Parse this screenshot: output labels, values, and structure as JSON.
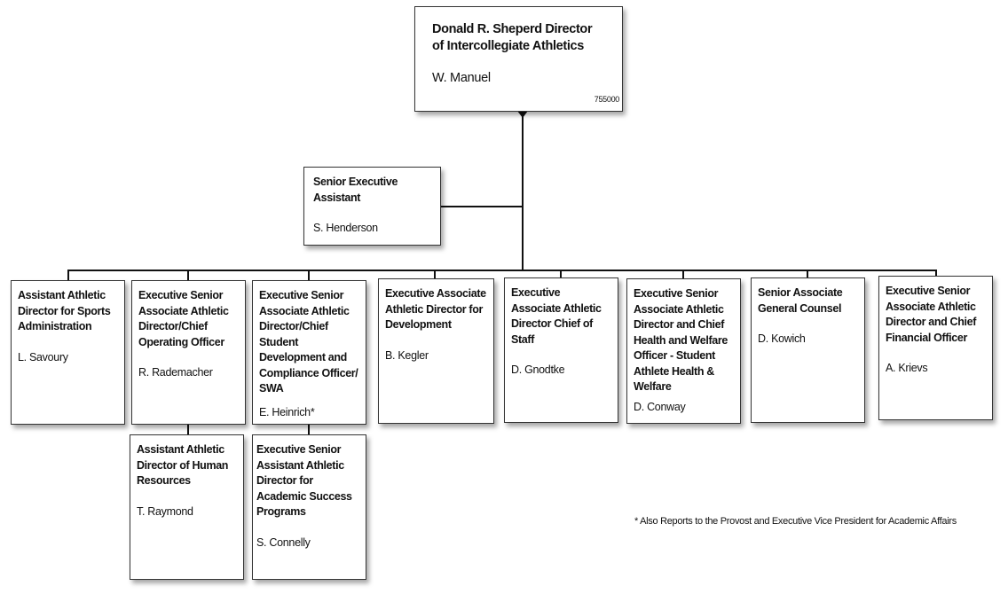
{
  "top": {
    "title": "Donald R. Sheperd Director of Intercollegiate Athletics",
    "name": "W. Manuel",
    "code": "755000"
  },
  "assistant": {
    "title": "Senior Executive Assistant",
    "name": "S. Henderson"
  },
  "reports": [
    {
      "title": "Assistant Athletic Director for Sports Administration",
      "name": "L. Savoury"
    },
    {
      "title": "Executive Senior Associate Athletic Director/Chief Operating Officer",
      "name": "R. Rademacher"
    },
    {
      "title": "Executive Senior Associate Athletic Director/Chief Student Development and Compliance Officer/ SWA",
      "name": "E. Heinrich*"
    },
    {
      "title": "Executive Associate Athletic Director for Development",
      "name": "B. Kegler"
    },
    {
      "title": "Executive Associate Athletic Director Chief of Staff",
      "name": "D. Gnodtke"
    },
    {
      "title": "Executive Senior Associate Athletic Director and Chief Health and Welfare Officer - Student Athlete Health & Welfare",
      "name": "D. Conway"
    },
    {
      "title": "Senior Associate General Counsel",
      "name": "D. Kowich"
    },
    {
      "title": "Executive Senior Associate Athletic Director and Chief Financial Officer",
      "name": "A. Krievs"
    }
  ],
  "sub_reports": [
    {
      "title": "Assistant Athletic Director of Human Resources",
      "name": "T. Raymond"
    },
    {
      "title": "Executive Senior Assistant Athletic Director for Academic Success Programs",
      "name": "S. Connelly"
    }
  ],
  "footnote": "*  Also Reports to the Provost and Executive Vice President for Academic Affairs"
}
